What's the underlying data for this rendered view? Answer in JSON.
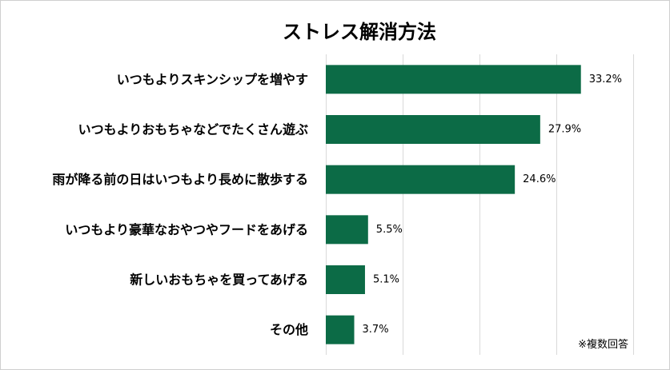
{
  "chart_data": {
    "type": "bar",
    "orientation": "horizontal",
    "title": "ストレス解消方法",
    "categories": [
      "いつもよりスキンシップを増やす",
      "いつもよりおもちゃなどでたくさん遊ぶ",
      "雨が降る前の日はいつもより長めに散歩する",
      "いつもより豪華なおやつやフードをあげる",
      "新しいおもちゃを買ってあげる",
      "その他"
    ],
    "values": [
      33.2,
      27.9,
      24.6,
      5.5,
      5.1,
      3.7
    ],
    "value_labels": [
      "33.2%",
      "27.9%",
      "24.6%",
      "5.5%",
      "5.1%",
      "3.7%"
    ],
    "xlim": [
      0,
      40
    ],
    "grid": true,
    "legend": "none",
    "bar_color": "#0c6b46",
    "note": "※複数回答"
  }
}
